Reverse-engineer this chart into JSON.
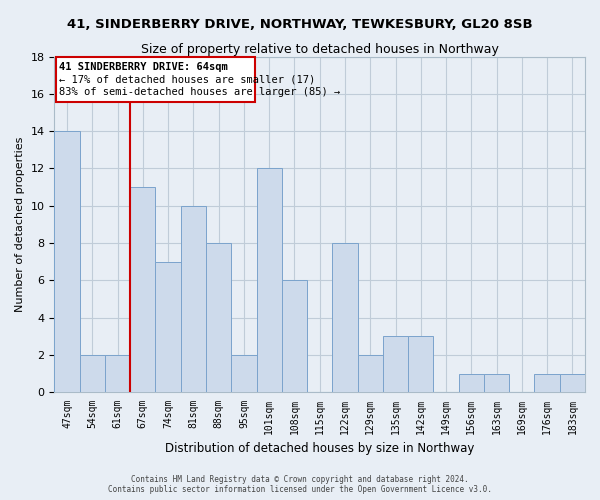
{
  "title": "41, SINDERBERRY DRIVE, NORTHWAY, TEWKESBURY, GL20 8SB",
  "subtitle": "Size of property relative to detached houses in Northway",
  "xlabel": "Distribution of detached houses by size in Northway",
  "ylabel": "Number of detached properties",
  "bar_labels": [
    "47sqm",
    "54sqm",
    "61sqm",
    "67sqm",
    "74sqm",
    "81sqm",
    "88sqm",
    "95sqm",
    "101sqm",
    "108sqm",
    "115sqm",
    "122sqm",
    "129sqm",
    "135sqm",
    "142sqm",
    "149sqm",
    "156sqm",
    "163sqm",
    "169sqm",
    "176sqm",
    "183sqm"
  ],
  "bar_values": [
    14,
    2,
    2,
    11,
    7,
    10,
    8,
    2,
    12,
    6,
    0,
    8,
    2,
    3,
    3,
    0,
    1,
    1,
    0,
    1,
    1
  ],
  "bar_color": "#cddaeb",
  "bar_edge_color": "#7ba3cc",
  "vline_color": "#cc0000",
  "ylim": [
    0,
    18
  ],
  "yticks": [
    0,
    2,
    4,
    6,
    8,
    10,
    12,
    14,
    16,
    18
  ],
  "annotation_title": "41 SINDERBERRY DRIVE: 64sqm",
  "annotation_line1": "← 17% of detached houses are smaller (17)",
  "annotation_line2": "83% of semi-detached houses are larger (85) →",
  "annotation_box_color": "#ffffff",
  "annotation_box_edge": "#cc0000",
  "footer1": "Contains HM Land Registry data © Crown copyright and database right 2024.",
  "footer2": "Contains public sector information licensed under the Open Government Licence v3.0.",
  "bg_color": "#e8eef5",
  "plot_bg_color": "#e8eef5",
  "grid_color": "#c0ccd8"
}
